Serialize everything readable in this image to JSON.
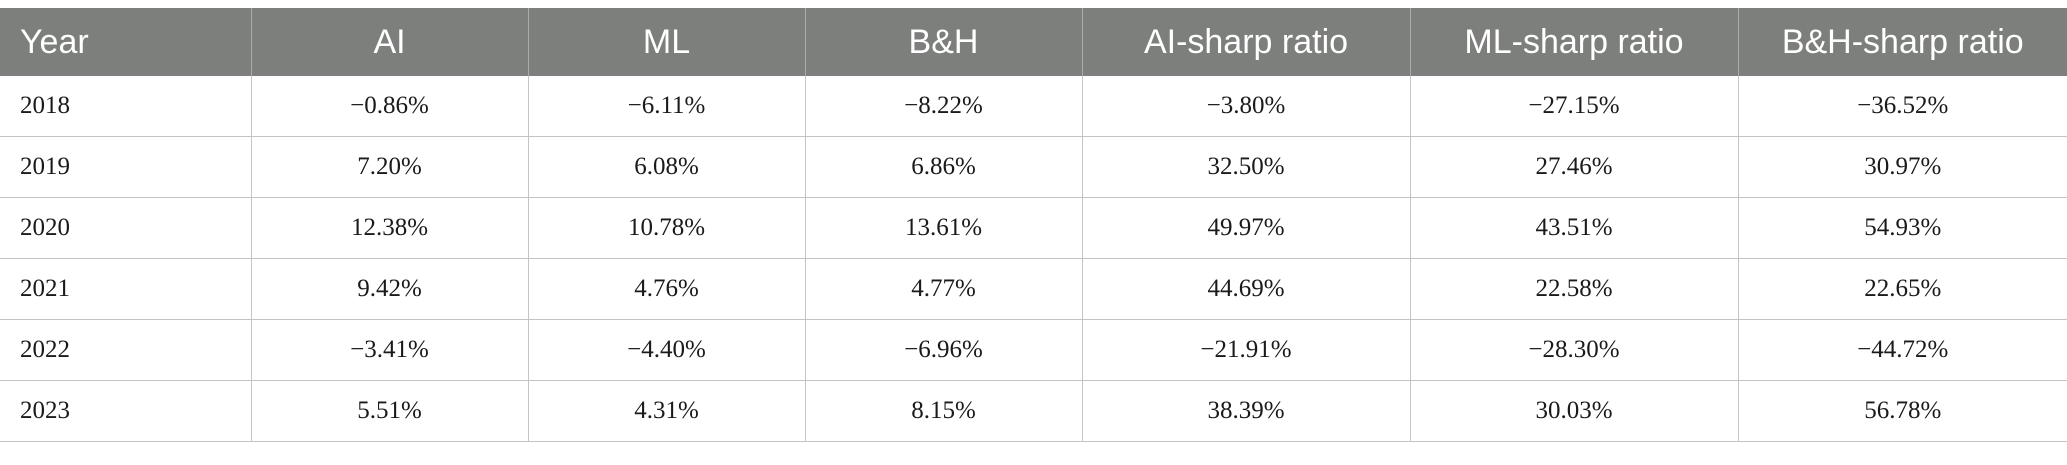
{
  "table": {
    "headers": [
      "Year",
      "AI",
      "ML",
      "B&H",
      "AI-sharp ratio",
      "ML-sharp ratio",
      "B&H-sharp ratio"
    ],
    "rows": [
      [
        "2018",
        "−0.86%",
        "−6.11%",
        "−8.22%",
        "−3.80%",
        "−27.15%",
        "−36.52%"
      ],
      [
        "2019",
        "7.20%",
        "6.08%",
        "6.86%",
        "32.50%",
        "27.46%",
        "30.97%"
      ],
      [
        "2020",
        "12.38%",
        "10.78%",
        "13.61%",
        "49.97%",
        "43.51%",
        "54.93%"
      ],
      [
        "2021",
        "9.42%",
        "4.76%",
        "4.77%",
        "44.69%",
        "22.58%",
        "22.65%"
      ],
      [
        "2022",
        "−3.41%",
        "−4.40%",
        "−6.96%",
        "−21.91%",
        "−28.30%",
        "−44.72%"
      ],
      [
        "2023",
        "5.51%",
        "4.31%",
        "8.15%",
        "38.39%",
        "30.03%",
        "56.78%"
      ]
    ]
  }
}
